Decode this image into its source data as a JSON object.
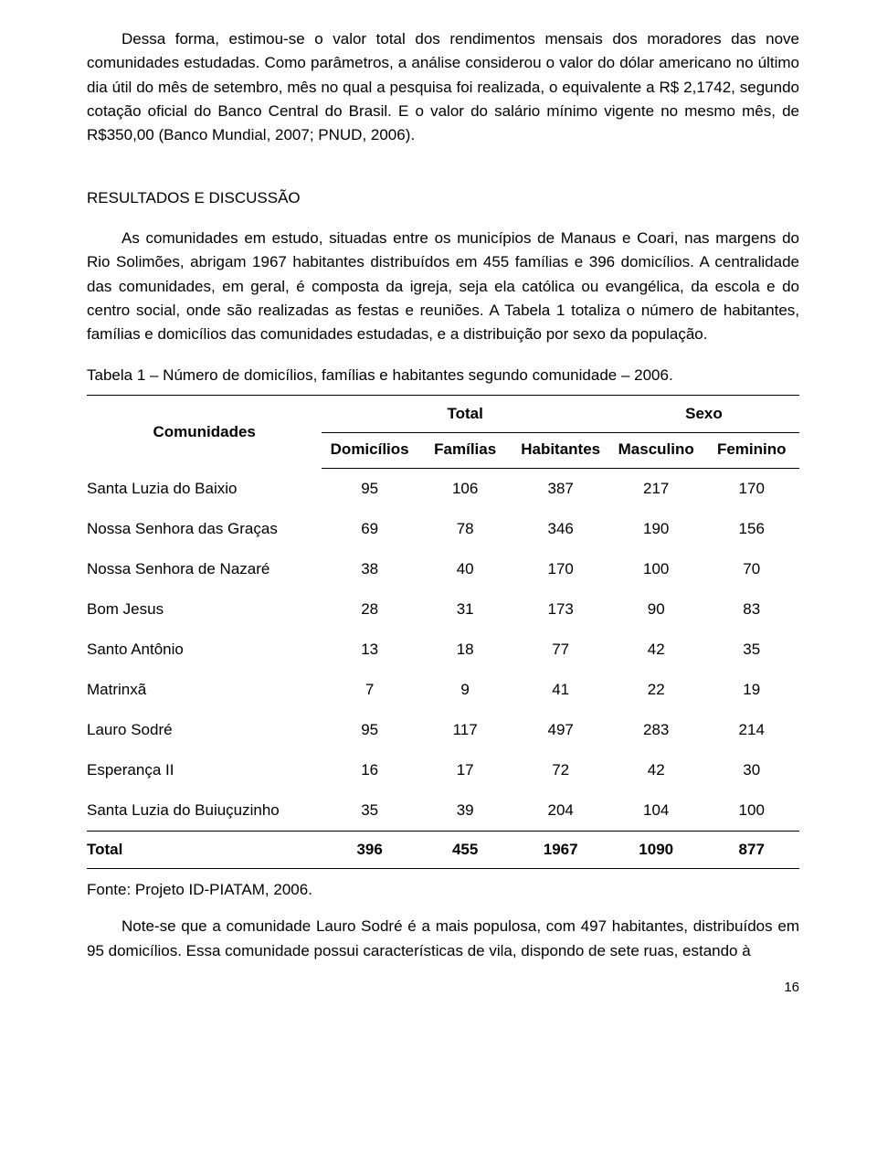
{
  "paragraphs": {
    "p1": "Dessa forma, estimou-se o valor total dos rendimentos mensais dos moradores das nove comunidades estudadas. Como parâmetros, a análise considerou o valor do dólar americano no último dia útil do mês de setembro, mês no qual a pesquisa foi realizada, o equivalente a R$ 2,1742, segundo cotação oficial do Banco Central do Brasil. E o valor do salário mínimo vigente no mesmo mês, de R$350,00 (Banco Mundial, 2007; PNUD, 2006).",
    "heading": "RESULTADOS E DISCUSSÃO",
    "p2": "As comunidades em estudo, situadas entre os municípios de Manaus e Coari, nas margens do Rio Solimões, abrigam 1967 habitantes distribuídos em 455 famílias e 396 domicílios. A centralidade das comunidades, em geral, é composta da igreja, seja ela católica ou evangélica, da escola e do centro social, onde são realizadas as festas e reuniões. A Tabela 1 totaliza o número de habitantes, famílias e domicílios das comunidades estudadas, e a distribuição por sexo da população.",
    "caption": "Tabela 1 – Número de domicílios, famílias e habitantes segundo comunidade – 2006.",
    "source": "Fonte: Projeto ID-PIATAM, 2006.",
    "p3": "Note-se que a comunidade Lauro Sodré é a mais populosa, com 497 habitantes, distribuídos em 95 domicílios. Essa comunidade possui características de vila, dispondo de sete ruas, estando à"
  },
  "table": {
    "header": {
      "rowLabel": "Comunidades",
      "group1": "Total",
      "group2": "Sexo",
      "sub": [
        "Domicílios",
        "Famílias",
        "Habitantes",
        "Masculino",
        "Feminino"
      ]
    },
    "rows": [
      {
        "label": "Santa Luzia do Baixio",
        "domicilios": "95",
        "familias": "106",
        "habitantes": "387",
        "masc": "217",
        "fem": "170"
      },
      {
        "label": "Nossa Senhora das Graças",
        "domicilios": "69",
        "familias": "78",
        "habitantes": "346",
        "masc": "190",
        "fem": "156"
      },
      {
        "label": "Nossa Senhora de Nazaré",
        "domicilios": "38",
        "familias": "40",
        "habitantes": "170",
        "masc": "100",
        "fem": "70"
      },
      {
        "label": "Bom Jesus",
        "domicilios": "28",
        "familias": "31",
        "habitantes": "173",
        "masc": "90",
        "fem": "83"
      },
      {
        "label": "Santo Antônio",
        "domicilios": "13",
        "familias": "18",
        "habitantes": "77",
        "masc": "42",
        "fem": "35"
      },
      {
        "label": "Matrinxã",
        "domicilios": "7",
        "familias": "9",
        "habitantes": "41",
        "masc": "22",
        "fem": "19"
      },
      {
        "label": "Lauro Sodré",
        "domicilios": "95",
        "familias": "117",
        "habitantes": "497",
        "masc": "283",
        "fem": "214"
      },
      {
        "label": "Esperança II",
        "domicilios": "16",
        "familias": "17",
        "habitantes": "72",
        "masc": "42",
        "fem": "30"
      },
      {
        "label": "Santa Luzia do Buiuçuzinho",
        "domicilios": "35",
        "familias": "39",
        "habitantes": "204",
        "masc": "104",
        "fem": "100"
      }
    ],
    "total": {
      "label": "Total",
      "domicilios": "396",
      "familias": "455",
      "habitantes": "1967",
      "masc": "1090",
      "fem": "877"
    }
  },
  "pageNumber": "16"
}
